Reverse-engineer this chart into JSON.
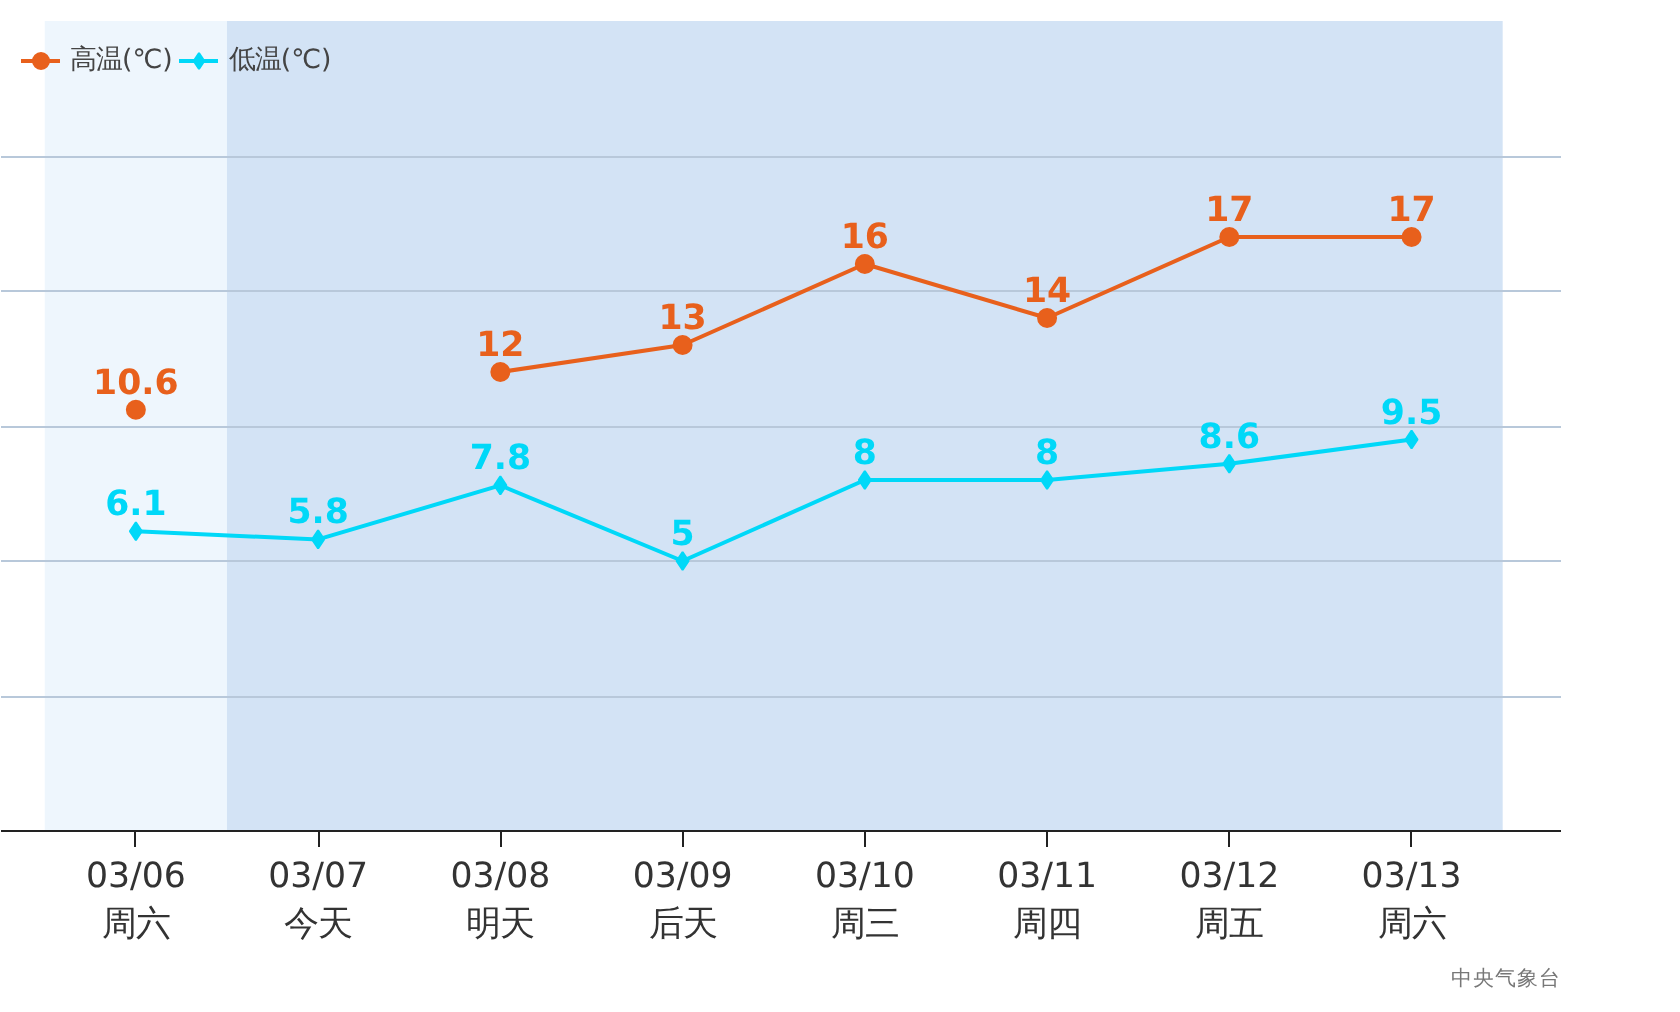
{
  "chart_data": {
    "type": "line",
    "categories": [
      "03/06\n周六",
      "03/07\n今天",
      "03/08\n明天",
      "03/09\n后天",
      "03/10\n周三",
      "03/11\n周四",
      "03/12\n周五",
      "03/13\n周六"
    ],
    "series": [
      {
        "name": "高温(℃)",
        "color": "#e8601c",
        "marker": "circle",
        "values": [
          10.6,
          null,
          12,
          13,
          16,
          14,
          17,
          17
        ]
      },
      {
        "name": "低温(℃)",
        "color": "#00d8f8",
        "marker": "diamond",
        "values": [
          6.1,
          5.8,
          7.8,
          5,
          8,
          8,
          8.6,
          9.5
        ]
      }
    ],
    "ylim": [
      -5,
      25
    ],
    "yticks": [
      {
        "value": -5,
        "label": null
      },
      {
        "value": 0,
        "label": null
      },
      {
        "value": 5,
        "label": null
      },
      {
        "value": 10,
        "label": null
      },
      {
        "value": 15,
        "label": null
      },
      {
        "value": 20,
        "label": null
      },
      {
        "value": 25,
        "label": null
      }
    ],
    "tick_labels": "x",
    "grid": "y",
    "legend": "top left",
    "data_labels": true,
    "line_style": "solid",
    "bands": [
      {
        "axis": "x",
        "from": "03/06\n周六",
        "to": "03/06\n周六",
        "color": "#eef6fd"
      },
      {
        "axis": "x",
        "from": "03/07\n今天",
        "to": "03/13\n周六",
        "color": "#d3e3f5"
      }
    ],
    "annotations": [
      "中央气象台"
    ]
  }
}
